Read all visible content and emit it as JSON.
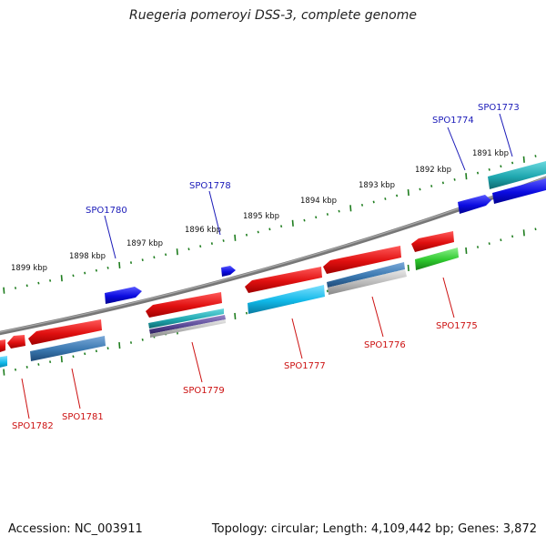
{
  "title": "Ruegeria pomeroyi DSS-3, complete genome",
  "footer": {
    "accession": "Accession: NC_003911",
    "summary": "Topology: circular; Length: 4,109,442 bp; Genes: 3,872"
  },
  "scale_labels": [
    "1891 kbp",
    "1892 kbp",
    "1893 kbp",
    "1894 kbp",
    "1895 kbp",
    "1896 kbp",
    "1897 kbp",
    "1898 kbp",
    "1899 kbp"
  ],
  "gene_labels": {
    "SPO1773": "SPO1773",
    "SPO1774": "SPO1774",
    "SPO1775": "SPO1775",
    "SPO1776": "SPO1776",
    "SPO1777": "SPO1777",
    "SPO1778": "SPO1778",
    "SPO1779": "SPO1779",
    "SPO1780": "SPO1780",
    "SPO1781": "SPO1781",
    "SPO1782": "SPO1782"
  },
  "colors": {
    "forward_gene": "#0b0be0",
    "reverse_gene": "#e01010",
    "cds_cyan": "#10b8e8",
    "cds_steel": "#3a78b0",
    "cds_green": "#2ec82e",
    "cds_teal": "#20a8b0",
    "tick": "#1e7d1e",
    "backbone": "#777777"
  }
}
